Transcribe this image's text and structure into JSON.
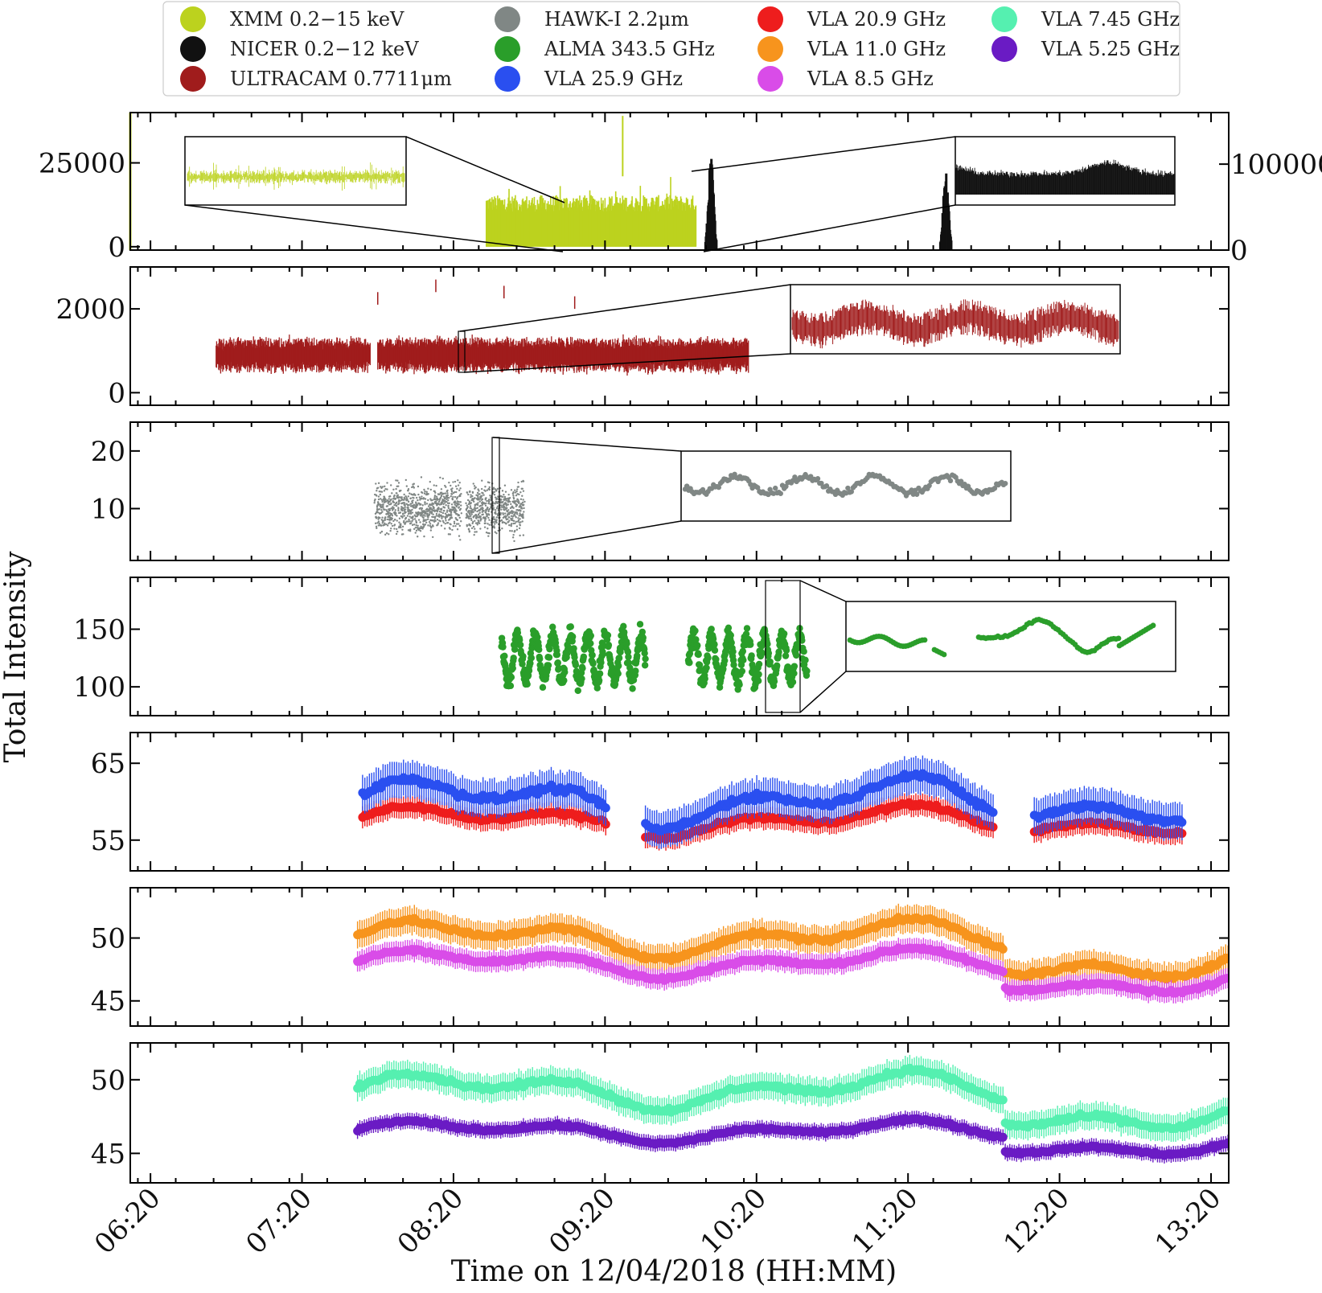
{
  "chart_data": {
    "type": "scatter",
    "xlabel": "Time on 12/04/2018 (HH:MM)",
    "ylabel": "Total Intensity",
    "x_tick_labels": [
      "06:20",
      "07:20",
      "08:20",
      "09:20",
      "10:20",
      "11:20",
      "12:20",
      "13:20"
    ],
    "x_range_minutes": [
      372,
      807
    ],
    "legend": [
      {
        "label": "XMM 0.2−15 keV",
        "color": "#bcd21e"
      },
      {
        "label": "NICER 0.2−12 keV",
        "color": "#111111"
      },
      {
        "label": "ULTRACAM 0.7711μm",
        "color": "#a01c1c"
      },
      {
        "label": "HAWK-I 2.2μm",
        "color": "#808785"
      },
      {
        "label": "ALMA 343.5 GHz",
        "color": "#2a9e2a"
      },
      {
        "label": "VLA 25.9 GHz",
        "color": "#2a4ff0"
      },
      {
        "label": "VLA 20.9 GHz",
        "color": "#ee1d1d"
      },
      {
        "label": "VLA 11.0 GHz",
        "color": "#f7941d"
      },
      {
        "label": "VLA 8.5 GHz",
        "color": "#d94ce8"
      },
      {
        "label": "VLA 7.45 GHz",
        "color": "#55f0b0"
      },
      {
        "label": "VLA 5.25 GHz",
        "color": "#6a1bc4"
      }
    ],
    "panels": [
      {
        "name": "xray",
        "ylim": [
          -1000,
          40000
        ],
        "y_ticks": [
          0,
          25000
        ],
        "y_tick_labels": [
          "0",
          "25000"
        ],
        "right_ylim": [
          0,
          160000
        ],
        "right_y_ticks": [
          0,
          100000
        ],
        "right_y_tick_labels": [
          "0",
          "100000"
        ],
        "series": [
          {
            "name": "XMM 0.2−15 keV",
            "color": "#bcd21e",
            "style": "bars",
            "t_start": 513,
            "t_end": 596,
            "baseline": 0,
            "level": 14000,
            "peak": 39000
          },
          {
            "name": "NICER 0.2−12 keV",
            "color": "#111111",
            "style": "bursts",
            "axis": "right",
            "bursts": [
              {
                "t": 602,
                "height": 100000
              },
              {
                "t": 695,
                "height": 90000
              }
            ]
          }
        ]
      },
      {
        "name": "ultracam",
        "ylim": [
          -300,
          3000
        ],
        "y_ticks": [
          0,
          2000
        ],
        "y_tick_labels": [
          "0",
          "2000"
        ],
        "series": [
          {
            "name": "ULTRACAM 0.7711μm",
            "color": "#a01c1c",
            "style": "bars",
            "segments": [
              [
                406,
                467
              ],
              [
                470,
                617
              ]
            ],
            "level": 900,
            "spread": 330
          }
        ]
      },
      {
        "name": "hawki",
        "ylim": [
          1,
          25
        ],
        "y_ticks": [
          10,
          20
        ],
        "y_tick_labels": [
          "10",
          "20"
        ],
        "series": [
          {
            "name": "HAWK-I 2.2μm",
            "color": "#808785",
            "style": "dots",
            "t_start": 469,
            "t_end": 528,
            "level": 10,
            "spread": 5.5
          }
        ]
      },
      {
        "name": "alma",
        "ylim": [
          75,
          195
        ],
        "y_ticks": [
          100,
          150
        ],
        "y_tick_labels": [
          "100",
          "150"
        ],
        "series": [
          {
            "name": "ALMA 343.5 GHz",
            "color": "#2a9e2a",
            "style": "dots",
            "segments": [
              [
                519,
                576
              ],
              [
                593,
                640
              ]
            ],
            "level": 125,
            "spread": 22
          }
        ]
      },
      {
        "name": "vla_high",
        "ylim": [
          51,
          69
        ],
        "y_ticks": [
          55,
          65
        ],
        "y_tick_labels": [
          "55",
          "65"
        ],
        "series": [
          {
            "name": "VLA 20.9 GHz",
            "color": "#ee1d1d",
            "style": "points",
            "base": 57.5,
            "amp": 1.6
          },
          {
            "name": "VLA 25.9 GHz",
            "color": "#2a4ff0",
            "style": "points",
            "base": 60.0,
            "amp": 2.6
          }
        ],
        "segments": [
          [
            464,
            561
          ],
          [
            576,
            714
          ],
          [
            730,
            789
          ]
        ]
      },
      {
        "name": "vla_mid",
        "ylim": [
          43,
          54
        ],
        "y_ticks": [
          45,
          50
        ],
        "y_tick_labels": [
          "45",
          "50"
        ],
        "series": [
          {
            "name": "VLA 11.0 GHz",
            "color": "#f7941d",
            "style": "points",
            "base": 50.0,
            "amp": 1.2
          },
          {
            "name": "VLA 8.5 GHz",
            "color": "#d94ce8",
            "style": "points",
            "base": 48.0,
            "amp": 0.9
          }
        ],
        "segments": [
          [
            462,
            807
          ]
        ]
      },
      {
        "name": "vla_low",
        "ylim": [
          43,
          52.5
        ],
        "y_ticks": [
          45,
          50
        ],
        "y_tick_labels": [
          "45",
          "50"
        ],
        "series": [
          {
            "name": "VLA 7.45 GHz",
            "color": "#55f0b0",
            "style": "points",
            "base": 49.3,
            "amp": 1.0
          },
          {
            "name": "VLA 5.25 GHz",
            "color": "#6a1bc4",
            "style": "points",
            "base": 46.5,
            "amp": 0.6
          }
        ],
        "segments": [
          [
            462,
            807
          ]
        ]
      }
    ]
  }
}
